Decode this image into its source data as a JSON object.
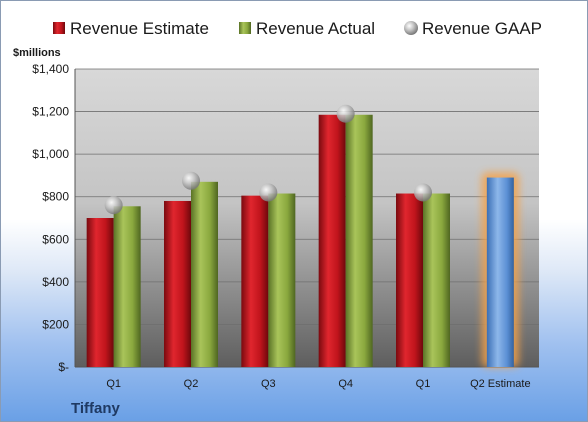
{
  "chart_data": {
    "type": "bar",
    "unit_label": "$millions",
    "company": "Tiffany",
    "categories": [
      "Q1",
      "Q2",
      "Q3",
      "Q4",
      "Q1",
      "Q2 Estimate"
    ],
    "ylim": [
      0,
      1400
    ],
    "yticks": [
      0,
      200,
      400,
      600,
      800,
      1000,
      1200,
      1400
    ],
    "ytick_labels": [
      "$-",
      "$200",
      "$400",
      "$600",
      "$800",
      "$1,000",
      "$1,200",
      "$1,400"
    ],
    "grid": true,
    "legend_position": "top",
    "series": [
      {
        "name": "Revenue Estimate",
        "kind": "bar",
        "color": "#c0141c",
        "values": [
          700,
          780,
          805,
          1185,
          815,
          null
        ]
      },
      {
        "name": "Revenue Actual",
        "kind": "bar",
        "color": "#8aa83e",
        "values": [
          755,
          870,
          815,
          1185,
          815,
          null
        ]
      },
      {
        "name": "Revenue GAAP",
        "kind": "marker",
        "color": "#b8b8b8",
        "values": [
          760,
          875,
          820,
          1190,
          820,
          null
        ]
      },
      {
        "name": "Q2 Estimate",
        "kind": "bar-highlight",
        "color": "#5b8fd4",
        "highlight_color": "#f5a24a",
        "values": [
          null,
          null,
          null,
          null,
          null,
          890
        ]
      }
    ]
  }
}
